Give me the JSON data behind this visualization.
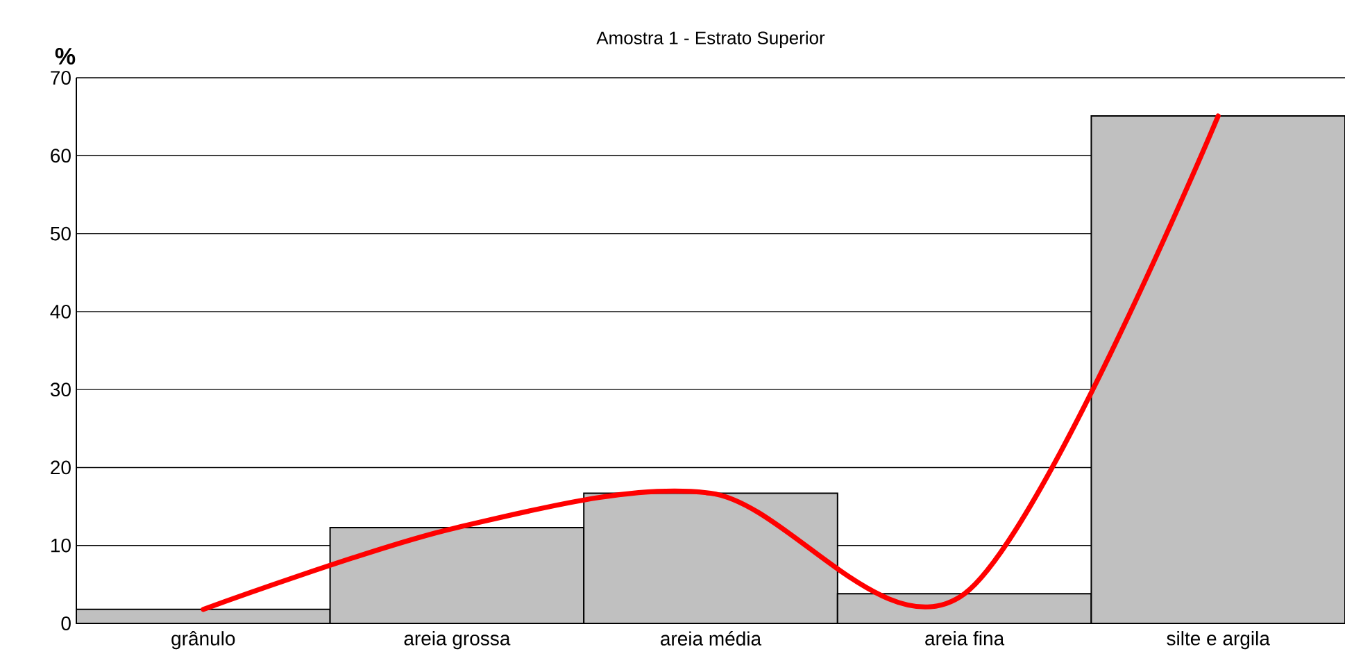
{
  "chart_data": {
    "type": "bar",
    "title": "Amostra 1 - Estrato Superior",
    "ylabel": "%",
    "categories": [
      "grânulo",
      "areia grossa",
      "areia média",
      "areia fina",
      "silte e argila"
    ],
    "series": [
      {
        "color": "#c0c0c0",
        "values": [
          1.8,
          12.3,
          16.7,
          3.8,
          65.1
        ]
      },
      {
        "type": "line",
        "color": "#ff0000",
        "values": [
          1.8,
          12.3,
          16.7,
          3.8,
          65.1
        ]
      }
    ],
    "ylim": [
      0,
      70
    ],
    "yticks": [
      0,
      10,
      20,
      30,
      40,
      50,
      60,
      70
    ],
    "grid": "y"
  }
}
